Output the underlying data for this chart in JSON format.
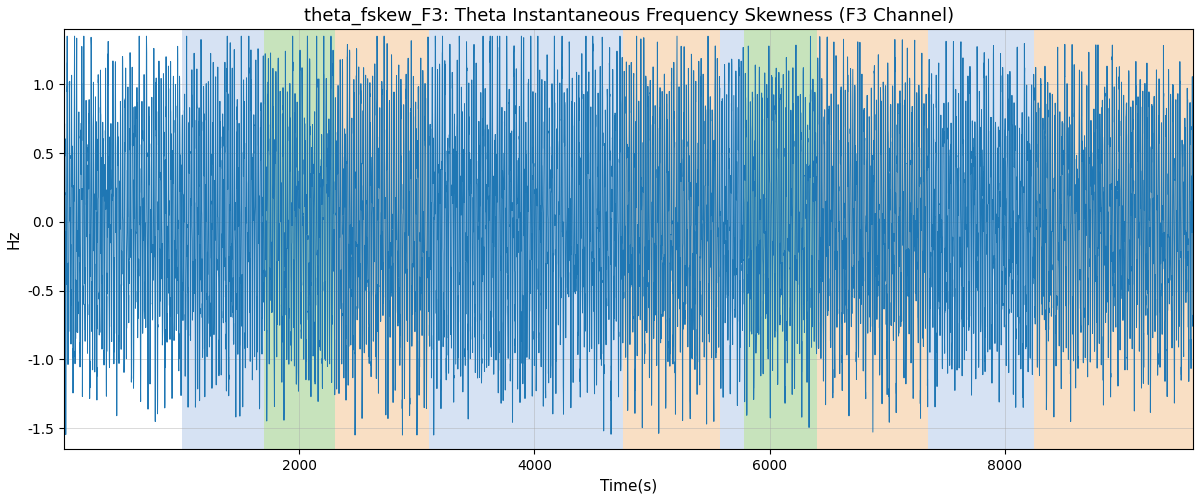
{
  "title": "theta_fskew_F3: Theta Instantaneous Frequency Skewness (F3 Channel)",
  "xlabel": "Time(s)",
  "ylabel": "Hz",
  "xlim": [
    0,
    9600
  ],
  "ylim": [
    -1.65,
    1.4
  ],
  "yticks": [
    -1.5,
    -1.0,
    -0.5,
    0.0,
    0.5,
    1.0
  ],
  "xticks": [
    2000,
    4000,
    6000,
    8000
  ],
  "line_color": "#1f77b4",
  "line_width": 0.7,
  "background_color": "#ffffff",
  "grid_color": "#aaaaaa",
  "title_fontsize": 13,
  "label_fontsize": 11,
  "bands": [
    {
      "xmin": 1000,
      "xmax": 1700,
      "color": "#aec6e8",
      "alpha": 0.5
    },
    {
      "xmin": 1700,
      "xmax": 2300,
      "color": "#90c97a",
      "alpha": 0.5
    },
    {
      "xmin": 2300,
      "xmax": 3100,
      "color": "#f5c08a",
      "alpha": 0.5
    },
    {
      "xmin": 3100,
      "xmax": 4750,
      "color": "#aec6e8",
      "alpha": 0.5
    },
    {
      "xmin": 4750,
      "xmax": 5580,
      "color": "#f5c08a",
      "alpha": 0.5
    },
    {
      "xmin": 5580,
      "xmax": 5780,
      "color": "#aec6e8",
      "alpha": 0.5
    },
    {
      "xmin": 5780,
      "xmax": 6400,
      "color": "#90c97a",
      "alpha": 0.5
    },
    {
      "xmin": 6400,
      "xmax": 7350,
      "color": "#f5c08a",
      "alpha": 0.5
    },
    {
      "xmin": 7350,
      "xmax": 8250,
      "color": "#aec6e8",
      "alpha": 0.5
    },
    {
      "xmin": 8250,
      "xmax": 9600,
      "color": "#f5c08a",
      "alpha": 0.5
    }
  ]
}
